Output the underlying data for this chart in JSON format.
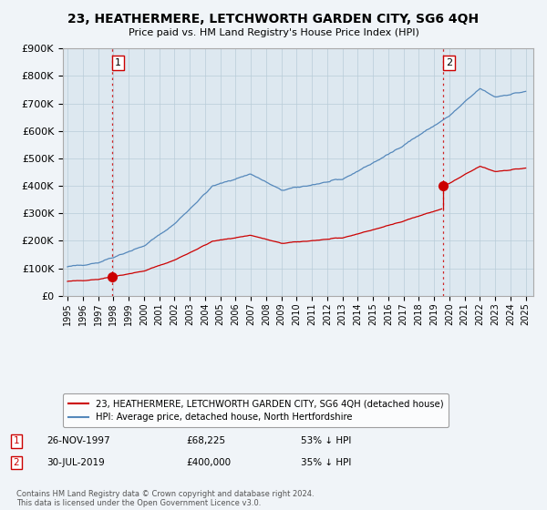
{
  "title": "23, HEATHERMERE, LETCHWORTH GARDEN CITY, SG6 4QH",
  "subtitle": "Price paid vs. HM Land Registry's House Price Index (HPI)",
  "legend_label_red": "23, HEATHERMERE, LETCHWORTH GARDEN CITY, SG6 4QH (detached house)",
  "legend_label_blue": "HPI: Average price, detached house, North Hertfordshire",
  "footnote": "Contains HM Land Registry data © Crown copyright and database right 2024.\nThis data is licensed under the Open Government Licence v3.0.",
  "annotation1_date": "26-NOV-1997",
  "annotation1_price": "£68,225",
  "annotation1_hpi": "53% ↓ HPI",
  "annotation2_date": "30-JUL-2019",
  "annotation2_price": "£400,000",
  "annotation2_hpi": "35% ↓ HPI",
  "sale1_year": 1997.9,
  "sale1_value": 68225,
  "sale2_year": 2019.58,
  "sale2_value": 400000,
  "ylim": [
    0,
    900000
  ],
  "xlim_start": 1994.7,
  "xlim_end": 2025.5,
  "background_color": "#f0f4f8",
  "plot_bg_color": "#dde8f0",
  "grid_color": "#b8ccd8",
  "red_color": "#cc0000",
  "blue_color": "#5588bb",
  "dashed_color": "#cc0000"
}
